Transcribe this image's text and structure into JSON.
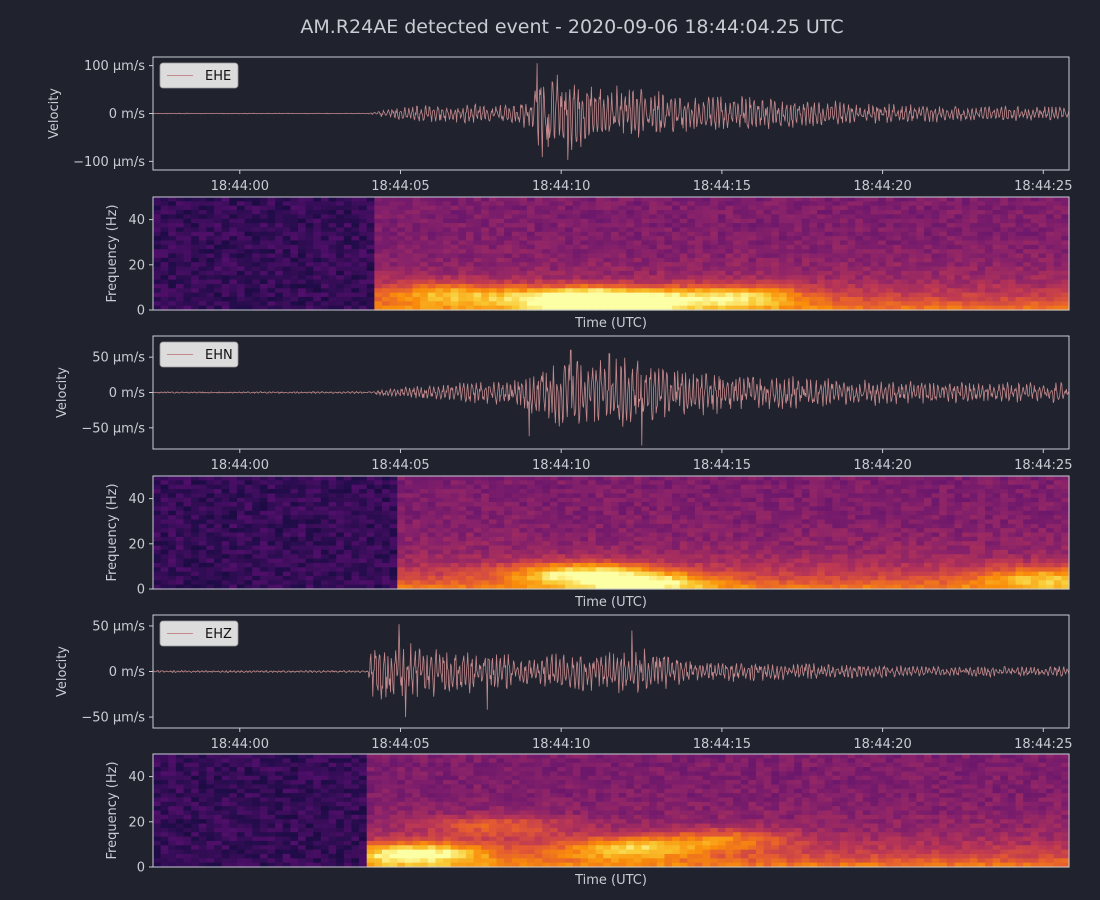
{
  "title": "AM.R24AE detected event - 2020-09-06 18:44:04.25 UTC",
  "colors": {
    "background": "#20232d",
    "axes_frame": "#c9ccd3",
    "text": "#c9ccd3",
    "trace": "#c48a8e",
    "legend_bg": "#dcdcdc",
    "spectrogram_colormap": "inferno"
  },
  "chart_data": [
    {
      "type": "line",
      "panel": "waveform",
      "legend": "EHE",
      "legend_position": "upper-left",
      "ylabel": "Velocity",
      "yticks": [
        {
          "v": 100,
          "label": "100 µm/s"
        },
        {
          "v": 0,
          "label": "0 m/s"
        },
        {
          "v": -100,
          "label": "−100 µm/s"
        }
      ],
      "ylim": [
        -118,
        118
      ],
      "xlim_seconds": [
        57.3,
        85.8
      ],
      "xticks": [
        "18:44:00",
        "18:44:05",
        "18:44:10",
        "18:44:15",
        "18:44:20",
        "18:44:25"
      ],
      "grid": false,
      "envelope": [
        {
          "t": 57.3,
          "a": 0.6
        },
        {
          "t": 64.0,
          "a": 0.6
        },
        {
          "t": 64.3,
          "a": 6
        },
        {
          "t": 65.0,
          "a": 15
        },
        {
          "t": 66.0,
          "a": 20
        },
        {
          "t": 68.5,
          "a": 22
        },
        {
          "t": 69.0,
          "a": 40
        },
        {
          "t": 69.3,
          "a": 95
        },
        {
          "t": 70.5,
          "a": 75
        },
        {
          "t": 72.0,
          "a": 55
        },
        {
          "t": 74.0,
          "a": 42
        },
        {
          "t": 76.0,
          "a": 38
        },
        {
          "t": 79.0,
          "a": 25
        },
        {
          "t": 82.0,
          "a": 18
        },
        {
          "t": 85.8,
          "a": 15
        }
      ],
      "peaks": [
        {
          "t": 69.25,
          "v": 105
        },
        {
          "t": 70.2,
          "v": -97
        },
        {
          "t": 69.6,
          "v": -70
        }
      ]
    },
    {
      "type": "heatmap",
      "panel": "spectrogram",
      "channel": "EHE",
      "ylabel": "Frequency (Hz)",
      "xlabel": "Time (UTC)",
      "yticks": [
        0,
        20,
        40
      ],
      "ylim": [
        0,
        50
      ],
      "xlim_seconds": [
        57.3,
        85.8
      ],
      "onset_seconds": 64.2,
      "hot_spots": [
        {
          "t": 70.5,
          "f": 5,
          "w": 0.9
        },
        {
          "t": 72,
          "f": 4,
          "w": 0.75
        },
        {
          "t": 75.5,
          "f": 6,
          "w": 0.7
        },
        {
          "t": 66.5,
          "f": 7,
          "w": 0.6
        }
      ]
    },
    {
      "type": "line",
      "panel": "waveform",
      "legend": "EHN",
      "legend_position": "upper-left",
      "ylabel": "Velocity",
      "yticks": [
        {
          "v": 50,
          "label": "50 µm/s"
        },
        {
          "v": 0,
          "label": "0 m/s"
        },
        {
          "v": -50,
          "label": "−50 µm/s"
        }
      ],
      "ylim": [
        -80,
        80
      ],
      "xlim_seconds": [
        57.3,
        85.8
      ],
      "xticks": [
        "18:44:00",
        "18:44:05",
        "18:44:10",
        "18:44:15",
        "18:44:20",
        "18:44:25"
      ],
      "grid": false,
      "envelope": [
        {
          "t": 57.3,
          "a": 1
        },
        {
          "t": 64.0,
          "a": 1.5
        },
        {
          "t": 64.5,
          "a": 6
        },
        {
          "t": 66.0,
          "a": 12
        },
        {
          "t": 68.0,
          "a": 18
        },
        {
          "t": 69.0,
          "a": 35
        },
        {
          "t": 70.0,
          "a": 50
        },
        {
          "t": 72.0,
          "a": 52
        },
        {
          "t": 73.0,
          "a": 42
        },
        {
          "t": 75.0,
          "a": 32
        },
        {
          "t": 78.0,
          "a": 22
        },
        {
          "t": 82.0,
          "a": 16
        },
        {
          "t": 85.8,
          "a": 15
        }
      ],
      "peaks": [
        {
          "t": 70.3,
          "v": 60
        },
        {
          "t": 72.5,
          "v": -75
        },
        {
          "t": 69.0,
          "v": -62
        },
        {
          "t": 71.5,
          "v": 55
        }
      ]
    },
    {
      "type": "heatmap",
      "panel": "spectrogram",
      "channel": "EHN",
      "ylabel": "Frequency (Hz)",
      "xlabel": "Time (UTC)",
      "yticks": [
        0,
        20,
        40
      ],
      "ylim": [
        0,
        50
      ],
      "xlim_seconds": [
        57.3,
        85.8
      ],
      "onset_seconds": 64.8,
      "hot_spots": [
        {
          "t": 70.5,
          "f": 7,
          "w": 0.75
        },
        {
          "t": 72.5,
          "f": 3,
          "w": 0.7
        },
        {
          "t": 85,
          "f": 5,
          "w": 0.55
        }
      ]
    },
    {
      "type": "line",
      "panel": "waveform",
      "legend": "EHZ",
      "legend_position": "upper-left",
      "ylabel": "Velocity",
      "yticks": [
        {
          "v": 50,
          "label": "50 µm/s"
        },
        {
          "v": 0,
          "label": "0 m/s"
        },
        {
          "v": -50,
          "label": "−50 µm/s"
        }
      ],
      "ylim": [
        -62,
        62
      ],
      "xlim_seconds": [
        57.3,
        85.8
      ],
      "xticks": [
        "18:44:00",
        "18:44:05",
        "18:44:10",
        "18:44:15",
        "18:44:20",
        "18:44:25"
      ],
      "grid": false,
      "envelope": [
        {
          "t": 57.3,
          "a": 1.2
        },
        {
          "t": 64.0,
          "a": 1.2
        },
        {
          "t": 64.1,
          "a": 30
        },
        {
          "t": 64.8,
          "a": 40
        },
        {
          "t": 65.6,
          "a": 30
        },
        {
          "t": 68.0,
          "a": 22
        },
        {
          "t": 70.0,
          "a": 20
        },
        {
          "t": 72.5,
          "a": 28
        },
        {
          "t": 74.0,
          "a": 14
        },
        {
          "t": 77.0,
          "a": 10
        },
        {
          "t": 80.0,
          "a": 7
        },
        {
          "t": 85.8,
          "a": 6
        }
      ],
      "peaks": [
        {
          "t": 64.95,
          "v": 52
        },
        {
          "t": 65.15,
          "v": -50
        },
        {
          "t": 72.2,
          "v": 45
        },
        {
          "t": 67.7,
          "v": -42
        }
      ]
    },
    {
      "type": "heatmap",
      "panel": "spectrogram",
      "channel": "EHZ",
      "ylabel": "Frequency (Hz)",
      "xlabel": "Time (UTC)",
      "yticks": [
        0,
        20,
        40
      ],
      "ylim": [
        0,
        50
      ],
      "xlim_seconds": [
        57.3,
        85.8
      ],
      "onset_seconds": 63.9,
      "hot_spots": [
        {
          "t": 65.5,
          "f": 6,
          "w": 0.95
        },
        {
          "t": 72,
          "f": 8,
          "w": 0.7
        },
        {
          "t": 68,
          "f": 18,
          "w": 0.45
        },
        {
          "t": 75,
          "f": 12,
          "w": 0.5
        }
      ]
    }
  ]
}
